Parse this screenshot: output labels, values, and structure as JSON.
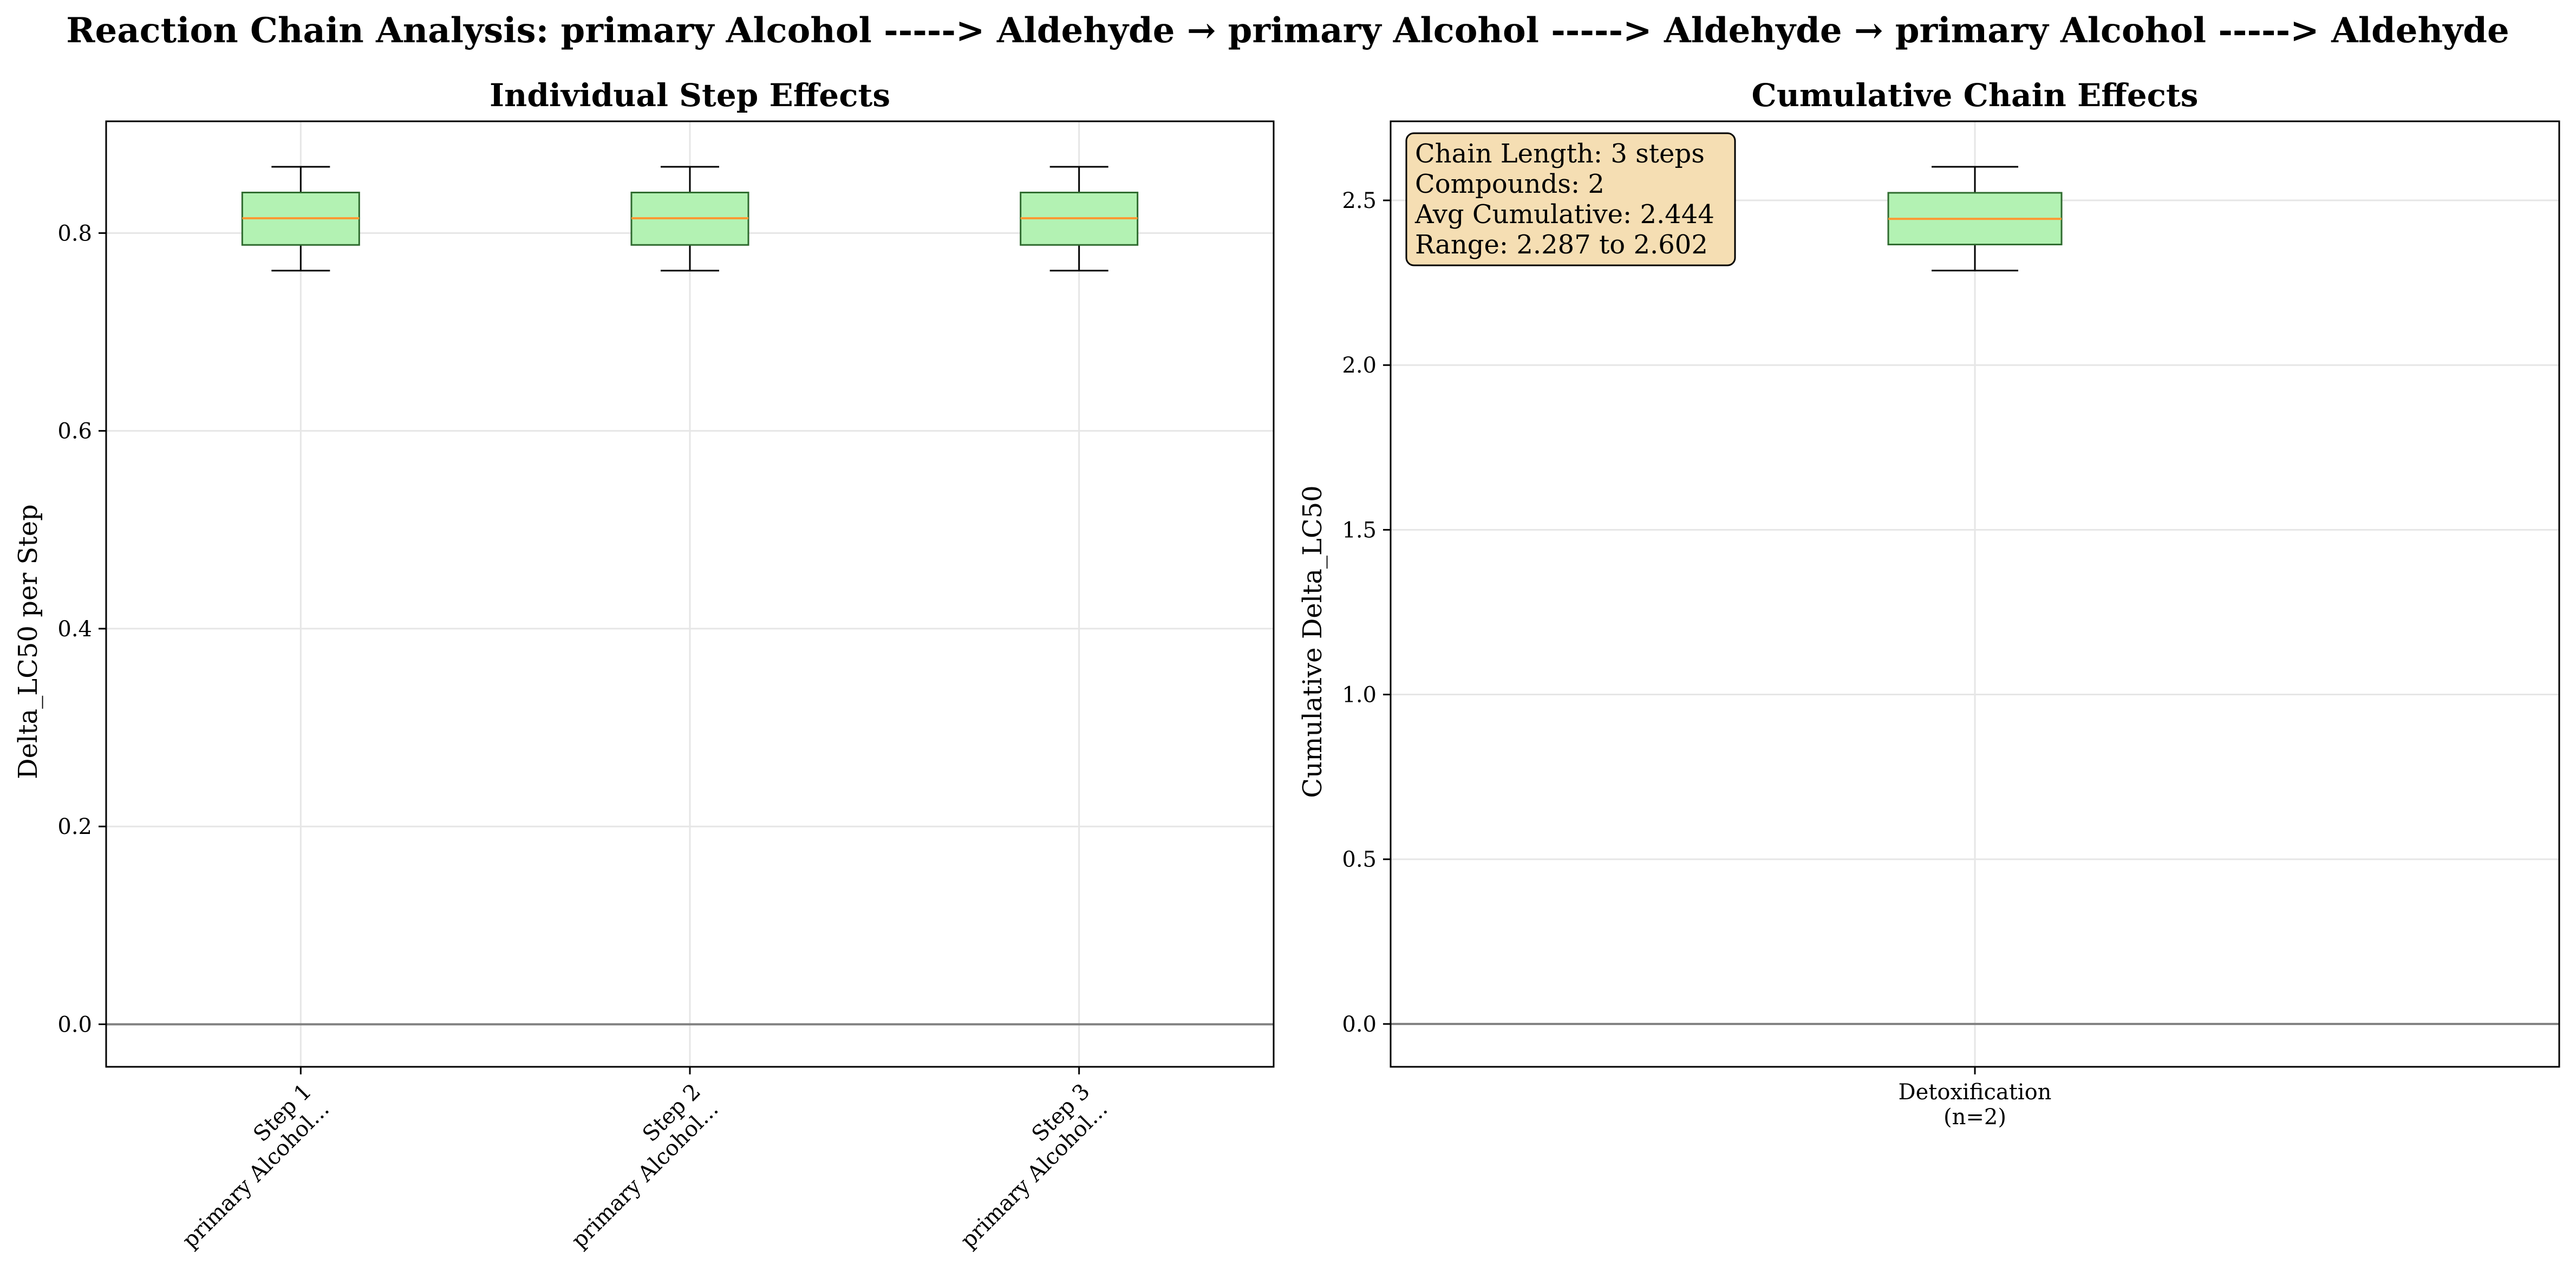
{
  "figure_title": "Reaction Chain Analysis: primary Alcohol -----> Aldehyde → primary Alcohol -----> Aldehyde → primary Alcohol -----> Aldehyde",
  "colors": {
    "box_fill": "#b3f2b3",
    "box_edge": "#2f6b2f",
    "median": "#ff9933",
    "zero_line": "#808080",
    "grid": "#e6e6e6",
    "stats_fill": "#f5deb3"
  },
  "chart_data": [
    {
      "type": "box",
      "title": "Individual Step Effects",
      "xlabel": "",
      "ylabel": "Delta_LC50 per Step",
      "ylim": [
        -0.043,
        0.913
      ],
      "yticks": [
        0.0,
        0.2,
        0.4,
        0.6,
        0.8
      ],
      "ytick_labels": [
        "0.0",
        "0.2",
        "0.4",
        "0.6",
        "0.8"
      ],
      "grid": true,
      "reference_line": 0,
      "categories": [
        {
          "line1": "Step 1",
          "line2": "primary Alcohol..."
        },
        {
          "line1": "Step 2",
          "line2": "primary Alcohol..."
        },
        {
          "line1": "Step 3",
          "line2": "primary Alcohol..."
        }
      ],
      "boxes": [
        {
          "whisker_low": 0.762,
          "q1": 0.788,
          "median": 0.815,
          "q3": 0.841,
          "whisker_high": 0.867
        },
        {
          "whisker_low": 0.762,
          "q1": 0.788,
          "median": 0.815,
          "q3": 0.841,
          "whisker_high": 0.867
        },
        {
          "whisker_low": 0.762,
          "q1": 0.788,
          "median": 0.815,
          "q3": 0.841,
          "whisker_high": 0.867
        }
      ]
    },
    {
      "type": "box",
      "title": "Cumulative Chain Effects",
      "xlabel": "",
      "ylabel": "Cumulative Delta_LC50",
      "ylim": [
        -0.13,
        2.74
      ],
      "yticks": [
        0.0,
        0.5,
        1.0,
        1.5,
        2.0,
        2.5
      ],
      "ytick_labels": [
        "0.0",
        "0.5",
        "1.0",
        "1.5",
        "2.0",
        "2.5"
      ],
      "grid": true,
      "reference_line": 0,
      "categories": [
        {
          "line1": "Detoxification",
          "line2": "(n=2)"
        }
      ],
      "boxes": [
        {
          "whisker_low": 2.287,
          "q1": 2.366,
          "median": 2.444,
          "q3": 2.523,
          "whisker_high": 2.602
        }
      ],
      "annotation": [
        "Chain Length: 3 steps",
        "Compounds: 2",
        "Avg Cumulative: 2.444",
        "Range: 2.287 to 2.602"
      ],
      "annotation_position": "top-left"
    }
  ]
}
